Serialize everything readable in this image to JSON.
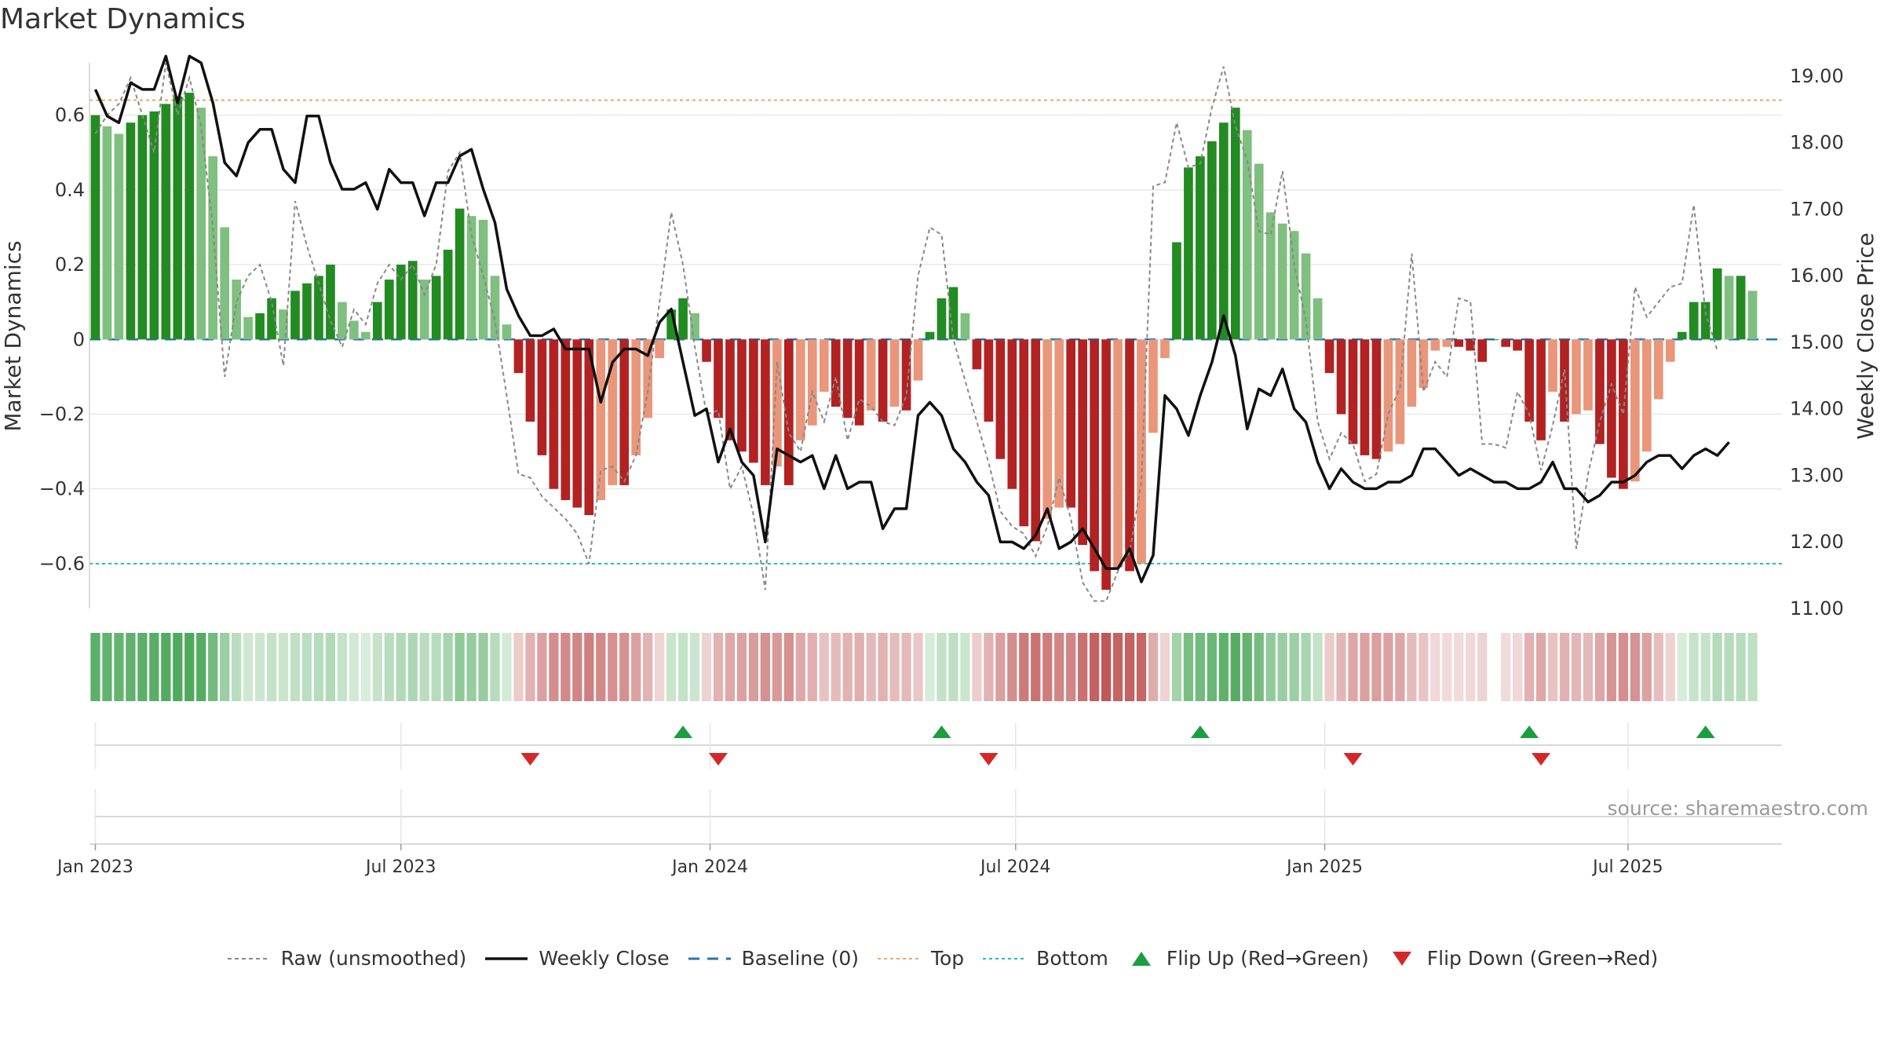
{
  "title": "Market Dynamics",
  "source": "source: sharemaestro.com",
  "colors": {
    "strong_green": "#228B22",
    "light_green": "#7FBF7F",
    "strong_red": "#B22222",
    "light_red": "#E9967A",
    "raw": "#888888",
    "close": "#111111",
    "baseline": "#1f77b4",
    "top": "#f4a460",
    "bottom": "#17becf",
    "flip_up": "#1a9e3f",
    "flip_down": "#d62728"
  },
  "legend": {
    "raw": "Raw (unsmoothed)",
    "close": "Weekly Close",
    "baseline": "Baseline (0)",
    "top": "Top",
    "bottom": "Bottom",
    "flip_up": "Flip Up (Red→Green)",
    "flip_down": "Flip Down (Green→Red)"
  },
  "chart_data": {
    "type": "bar",
    "title": "Market Dynamics",
    "ylabel": "Market Dynamics",
    "y2label": "Weekly Close Price",
    "ylim": [
      -0.72,
      0.74
    ],
    "y2lim": [
      11.0,
      19.2
    ],
    "yticks": [
      {
        "value": 0.6,
        "label": "0.6"
      },
      {
        "value": 0.4,
        "label": "0.4"
      },
      {
        "value": 0.2,
        "label": "0.2"
      },
      {
        "value": 0,
        "label": "0"
      },
      {
        "value": -0.2,
        "label": "−0.2"
      },
      {
        "value": -0.4,
        "label": "−0.4"
      },
      {
        "value": -0.6,
        "label": "−0.6"
      }
    ],
    "y2ticks": [
      {
        "value": 19,
        "label": "19.00"
      },
      {
        "value": 18,
        "label": "18.00"
      },
      {
        "value": 17,
        "label": "17.00"
      },
      {
        "value": 16,
        "label": "16.00"
      },
      {
        "value": 15,
        "label": "15.00"
      },
      {
        "value": 14,
        "label": "14.00"
      },
      {
        "value": 13,
        "label": "13.00"
      },
      {
        "value": 12,
        "label": "12.00"
      },
      {
        "value": 11,
        "label": "11.00"
      }
    ],
    "week_range": [
      0,
      143.5
    ],
    "xticks": [
      {
        "week": 0,
        "label": "Jan 2023"
      },
      {
        "week": 26,
        "label": "Jul 2023"
      },
      {
        "week": 52.3,
        "label": "Jan 2024"
      },
      {
        "week": 78.3,
        "label": "Jul 2024"
      },
      {
        "week": 104.6,
        "label": "Jan 2025"
      },
      {
        "week": 130.4,
        "label": "Jul 2025"
      }
    ],
    "reference_lines": {
      "top": 0.64,
      "bottom": -0.6,
      "baseline": 0
    },
    "dynamics": [
      0.6,
      0.57,
      0.55,
      0.58,
      0.6,
      0.61,
      0.63,
      0.65,
      0.66,
      0.62,
      0.49,
      0.3,
      0.16,
      0.06,
      0.07,
      0.11,
      0.08,
      0.13,
      0.15,
      0.17,
      0.2,
      0.1,
      0.05,
      0.02,
      0.1,
      0.16,
      0.2,
      0.21,
      0.16,
      0.17,
      0.24,
      0.35,
      0.33,
      0.32,
      0.17,
      0.04,
      -0.09,
      -0.22,
      -0.31,
      -0.4,
      -0.43,
      -0.45,
      -0.47,
      -0.43,
      -0.39,
      -0.39,
      -0.31,
      -0.21,
      -0.05,
      0.08,
      0.11,
      0.07,
      -0.06,
      -0.21,
      -0.27,
      -0.3,
      -0.33,
      -0.39,
      -0.34,
      -0.39,
      -0.27,
      -0.23,
      -0.14,
      -0.18,
      -0.21,
      -0.23,
      -0.19,
      -0.22,
      -0.18,
      -0.19,
      -0.11,
      0.02,
      0.11,
      0.14,
      0.07,
      -0.08,
      -0.22,
      -0.32,
      -0.4,
      -0.5,
      -0.54,
      -0.48,
      -0.45,
      -0.45,
      -0.55,
      -0.62,
      -0.67,
      -0.61,
      -0.62,
      -0.6,
      -0.25,
      -0.05,
      0.26,
      0.46,
      0.49,
      0.53,
      0.58,
      0.62,
      0.56,
      0.47,
      0.34,
      0.31,
      0.29,
      0.23,
      0.11,
      -0.09,
      -0.2,
      -0.28,
      -0.31,
      -0.32,
      -0.3,
      -0.28,
      -0.18,
      -0.13,
      -0.03,
      -0.02,
      -0.02,
      -0.03,
      -0.06,
      0,
      -0.02,
      -0.03,
      -0.22,
      -0.27,
      -0.14,
      -0.22,
      -0.2,
      -0.19,
      -0.28,
      -0.37,
      -0.4,
      -0.38,
      -0.3,
      -0.16,
      -0.06,
      0.02,
      0.1,
      0.1,
      0.19,
      0.17,
      0.17,
      0.13
    ],
    "raw": [
      0.55,
      0.6,
      0.63,
      0.7,
      0.6,
      0.5,
      0.74,
      0.6,
      0.7,
      0.57,
      0.3,
      -0.1,
      0.1,
      0.17,
      0.2,
      0.1,
      -0.07,
      0.37,
      0.25,
      0.15,
      0.05,
      -0.02,
      0.08,
      0.04,
      0.15,
      0.2,
      0.16,
      0.2,
      0.12,
      0.2,
      0.45,
      0.5,
      0.28,
      0.17,
      0.05,
      -0.15,
      -0.36,
      -0.37,
      -0.42,
      -0.45,
      -0.48,
      -0.52,
      -0.6,
      -0.35,
      -0.34,
      -0.38,
      -0.31,
      -0.14,
      0.1,
      0.34,
      0.2,
      -0.02,
      -0.2,
      -0.19,
      -0.4,
      -0.34,
      -0.47,
      -0.67,
      -0.06,
      -0.25,
      -0.3,
      -0.14,
      -0.22,
      -0.1,
      -0.27,
      -0.16,
      -0.18,
      -0.22,
      -0.23,
      -0.15,
      0.17,
      0.3,
      0.28,
      0,
      -0.11,
      -0.22,
      -0.33,
      -0.46,
      -0.5,
      -0.52,
      -0.58,
      -0.5,
      -0.37,
      -0.48,
      -0.65,
      -0.7,
      -0.7,
      -0.62,
      -0.57,
      -0.38,
      0.41,
      0.42,
      0.58,
      0.46,
      0.47,
      0.62,
      0.73,
      0.57,
      0.48,
      0.29,
      0.28,
      0.45,
      0.2,
      0.05,
      -0.22,
      -0.32,
      -0.25,
      -0.28,
      -0.38,
      -0.36,
      -0.2,
      -0.13,
      0.23,
      -0.14,
      -0.06,
      -0.1,
      0.11,
      0.1,
      -0.28,
      -0.28,
      -0.29,
      -0.14,
      -0.2,
      -0.35,
      -0.23,
      -0.08,
      -0.56,
      -0.36,
      -0.22,
      -0.12,
      -0.2,
      0.14,
      0.06,
      0.1,
      0.14,
      0.15,
      0.36,
      0.07,
      -0.03
    ],
    "close": [
      18.8,
      18.4,
      18.3,
      18.9,
      18.8,
      18.8,
      19.3,
      18.6,
      19.3,
      19.2,
      18.6,
      17.7,
      17.5,
      18.0,
      18.2,
      18.2,
      17.6,
      17.4,
      18.4,
      18.4,
      17.7,
      17.3,
      17.3,
      17.4,
      17.0,
      17.6,
      17.4,
      17.4,
      16.9,
      17.4,
      17.4,
      17.8,
      17.9,
      17.3,
      16.8,
      15.8,
      15.4,
      15.1,
      15.1,
      15.2,
      14.9,
      14.9,
      14.9,
      14.1,
      14.7,
      14.9,
      14.9,
      14.8,
      15.3,
      15.5,
      14.7,
      13.9,
      14.0,
      13.2,
      13.7,
      13.2,
      13.0,
      12.0,
      13.4,
      13.3,
      13.2,
      13.3,
      12.8,
      13.3,
      12.8,
      12.9,
      12.9,
      12.2,
      12.5,
      12.5,
      13.9,
      14.1,
      13.9,
      13.4,
      13.2,
      12.9,
      12.7,
      12.0,
      12.0,
      11.9,
      12.1,
      12.5,
      11.9,
      12.0,
      12.2,
      11.9,
      11.6,
      11.6,
      11.9,
      11.4,
      11.8,
      14.2,
      14.0,
      13.6,
      14.2,
      14.7,
      15.4,
      14.8,
      13.7,
      14.3,
      14.2,
      14.6,
      14.0,
      13.8,
      13.2,
      12.8,
      13.1,
      12.9,
      12.8,
      12.8,
      12.9,
      12.9,
      13.0,
      13.4,
      13.4,
      13.2,
      13.0,
      13.1,
      13.0,
      12.9,
      12.9,
      12.8,
      12.8,
      12.9,
      13.2,
      12.8,
      12.8,
      12.6,
      12.7,
      12.9,
      12.9,
      13.0,
      13.2,
      13.3,
      13.3,
      13.1,
      13.3,
      13.4,
      13.3,
      13.5
    ],
    "flip_up_weeks": [
      50,
      72,
      94,
      122,
      137
    ],
    "flip_down_weeks": [
      37,
      53,
      76,
      107,
      123
    ]
  }
}
